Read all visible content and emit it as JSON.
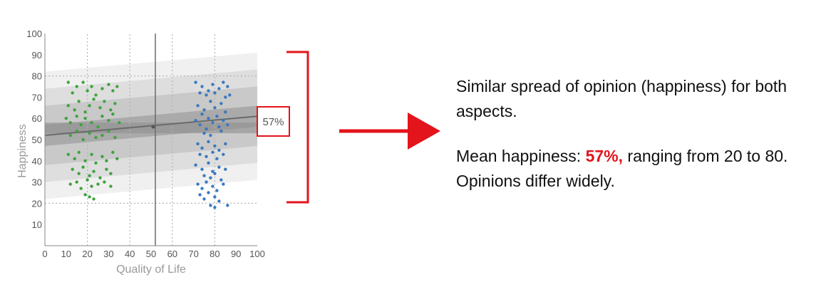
{
  "chart_data": {
    "type": "scatter",
    "xlabel": "Quality of Life",
    "ylabel": "Happiness",
    "xlim": [
      0,
      100
    ],
    "ylim": [
      0,
      100
    ],
    "xticks": [
      0,
      10,
      20,
      30,
      40,
      50,
      60,
      70,
      80,
      90,
      100
    ],
    "yticks": [
      10,
      20,
      30,
      40,
      50,
      60,
      70,
      80,
      90,
      100
    ],
    "mean_label": "57%",
    "mean": 57,
    "midpoint": {
      "x": 51,
      "y": 56
    },
    "vertical_line_x": 52,
    "dotted_x": [
      20,
      40,
      60,
      80
    ],
    "dotted_y": [
      20,
      80
    ],
    "trend": {
      "start": 52,
      "end": 61
    },
    "bands": [
      {
        "offsets": [
          -30,
          30
        ],
        "color": "#f0f0f0"
      },
      {
        "offsets": [
          -22,
          22
        ],
        "color": "#dedede"
      },
      {
        "offsets": [
          -14,
          14
        ],
        "color": "#c9c9c9"
      },
      {
        "offsets": [
          -5,
          5
        ],
        "color": "#aaaaaa"
      }
    ],
    "mean_band": [
      53,
      58
    ],
    "series": [
      {
        "color": "#3ea33e",
        "points": [
          [
            11,
            77
          ],
          [
            13,
            72
          ],
          [
            15,
            75
          ],
          [
            18,
            77
          ],
          [
            20,
            73
          ],
          [
            22,
            75
          ],
          [
            24,
            71
          ],
          [
            27,
            74
          ],
          [
            30,
            76
          ],
          [
            32,
            73
          ],
          [
            34,
            75
          ],
          [
            11,
            66
          ],
          [
            14,
            64
          ],
          [
            16,
            68
          ],
          [
            19,
            63
          ],
          [
            21,
            66
          ],
          [
            23,
            69
          ],
          [
            26,
            65
          ],
          [
            28,
            68
          ],
          [
            31,
            64
          ],
          [
            33,
            67
          ],
          [
            10,
            60
          ],
          [
            12,
            58
          ],
          [
            15,
            61
          ],
          [
            17,
            57
          ],
          [
            19,
            60
          ],
          [
            22,
            58
          ],
          [
            25,
            56
          ],
          [
            27,
            61
          ],
          [
            30,
            59
          ],
          [
            32,
            62
          ],
          [
            35,
            58
          ],
          [
            12,
            52
          ],
          [
            15,
            54
          ],
          [
            18,
            50
          ],
          [
            21,
            53
          ],
          [
            24,
            51
          ],
          [
            27,
            52
          ],
          [
            30,
            54
          ],
          [
            33,
            51
          ],
          [
            11,
            43
          ],
          [
            14,
            41
          ],
          [
            16,
            44
          ],
          [
            19,
            40
          ],
          [
            22,
            43
          ],
          [
            24,
            39
          ],
          [
            27,
            42
          ],
          [
            29,
            40
          ],
          [
            32,
            44
          ],
          [
            34,
            41
          ],
          [
            13,
            36
          ],
          [
            16,
            34
          ],
          [
            18,
            37
          ],
          [
            21,
            33
          ],
          [
            23,
            35
          ],
          [
            26,
            32
          ],
          [
            29,
            36
          ],
          [
            31,
            34
          ],
          [
            12,
            29
          ],
          [
            15,
            30
          ],
          [
            17,
            27
          ],
          [
            20,
            31
          ],
          [
            22,
            28
          ],
          [
            25,
            29
          ],
          [
            28,
            30
          ],
          [
            31,
            28
          ],
          [
            19,
            24
          ],
          [
            21,
            23
          ],
          [
            23,
            22
          ]
        ]
      },
      {
        "color": "#3a79c0",
        "points": [
          [
            71,
            77
          ],
          [
            74,
            75
          ],
          [
            77,
            73
          ],
          [
            79,
            76
          ],
          [
            82,
            74
          ],
          [
            84,
            77
          ],
          [
            86,
            75
          ],
          [
            73,
            72
          ],
          [
            76,
            71
          ],
          [
            80,
            72
          ],
          [
            85,
            70
          ],
          [
            87,
            71
          ],
          [
            72,
            66
          ],
          [
            75,
            64
          ],
          [
            78,
            68
          ],
          [
            80,
            65
          ],
          [
            83,
            67
          ],
          [
            85,
            63
          ],
          [
            74,
            62
          ],
          [
            77,
            60
          ],
          [
            81,
            61
          ],
          [
            71,
            59
          ],
          [
            73,
            57
          ],
          [
            76,
            55
          ],
          [
            79,
            58
          ],
          [
            82,
            56
          ],
          [
            84,
            59
          ],
          [
            86,
            57
          ],
          [
            75,
            53
          ],
          [
            78,
            52
          ],
          [
            83,
            54
          ],
          [
            72,
            48
          ],
          [
            74,
            46
          ],
          [
            77,
            49
          ],
          [
            80,
            47
          ],
          [
            82,
            45
          ],
          [
            85,
            48
          ],
          [
            73,
            43
          ],
          [
            76,
            42
          ],
          [
            79,
            44
          ],
          [
            81,
            41
          ],
          [
            84,
            43
          ],
          [
            71,
            38
          ],
          [
            74,
            36
          ],
          [
            77,
            39
          ],
          [
            79,
            35
          ],
          [
            82,
            37
          ],
          [
            85,
            36
          ],
          [
            75,
            33
          ],
          [
            78,
            32
          ],
          [
            80,
            34
          ],
          [
            83,
            31
          ],
          [
            72,
            29
          ],
          [
            74,
            27
          ],
          [
            76,
            30
          ],
          [
            79,
            28
          ],
          [
            81,
            26
          ],
          [
            84,
            29
          ],
          [
            73,
            24
          ],
          [
            75,
            22
          ],
          [
            77,
            25
          ],
          [
            80,
            23
          ],
          [
            82,
            21
          ],
          [
            78,
            19
          ],
          [
            80,
            18
          ],
          [
            86,
            19
          ]
        ]
      }
    ]
  },
  "annotation": {
    "bracket_color": "#e3141c",
    "arrow_color": "#e3141c"
  },
  "notes": {
    "line1": "Similar spread of opinion (happiness) for both aspects.",
    "line2_prefix": "Mean happiness: ",
    "line2_highlight": "57%,",
    "line2_suffix": " ranging from 20 to 80. Opinions differ widely."
  }
}
